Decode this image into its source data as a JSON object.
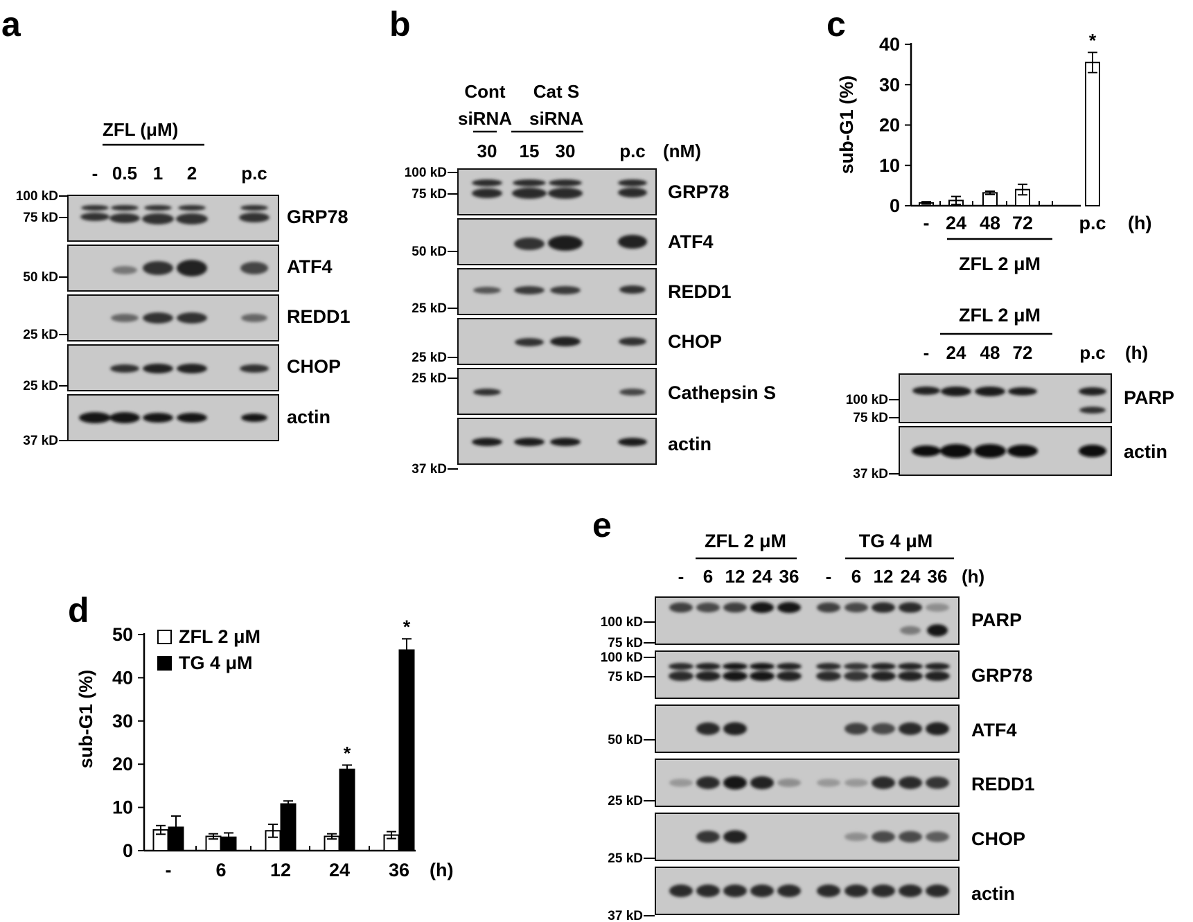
{
  "panel_a": {
    "letter": "a",
    "treatment": "ZFL (μM)",
    "lanes": [
      "-",
      "0.5",
      "1",
      "2",
      "p.c"
    ],
    "proteins": [
      "GRP78",
      "ATF4",
      "REDD1",
      "CHOP",
      "actin"
    ],
    "markers": [
      "100 kD",
      "75 kD",
      "50 kD",
      "25 kD",
      "25 kD",
      "37 kD"
    ]
  },
  "panel_b": {
    "letter": "b",
    "group1_line1": "Cont",
    "group1_line2": "siRNA",
    "group2_line1": "Cat S",
    "group2_line2": "siRNA",
    "lanes": [
      "30",
      "15",
      "30",
      "p.c"
    ],
    "unit": "(nM)",
    "proteins": [
      "GRP78",
      "ATF4",
      "REDD1",
      "CHOP",
      "Cathepsin S",
      "actin"
    ],
    "markers": [
      "100 kD",
      "75 kD",
      "50 kD",
      "25 kD",
      "25 kD",
      "25 kD",
      "37 kD"
    ]
  },
  "panel_c": {
    "letter": "c",
    "blot": {
      "treatment": "ZFL 2 μM",
      "lanes": [
        "-",
        "24",
        "48",
        "72",
        "p.c"
      ],
      "unit": "(h)",
      "proteins": [
        "PARP",
        "actin"
      ],
      "markers": [
        "100 kD",
        "75 kD",
        "37 kD"
      ]
    }
  },
  "panel_d": {
    "letter": "d"
  },
  "panel_e": {
    "letter": "e",
    "group1": "ZFL 2 μM",
    "group2": "TG 4 μM",
    "lanes": [
      "-",
      "6",
      "12",
      "24",
      "36",
      "-",
      "6",
      "12",
      "24",
      "36"
    ],
    "unit": "(h)",
    "proteins": [
      "PARP",
      "GRP78",
      "ATF4",
      "REDD1",
      "CHOP",
      "actin"
    ],
    "markers": [
      "100 kD",
      "75 kD",
      "100 kD",
      "75 kD",
      "50 kD",
      "25 kD",
      "25 kD",
      "37 kD"
    ]
  },
  "chart_data": [
    {
      "type": "bar",
      "panel": "c",
      "ylabel": "sub-G1 (%)",
      "xlabel": "",
      "categories": [
        "-",
        "24",
        "48",
        "72",
        "p.c"
      ],
      "x_unit": "(h)",
      "group_label": "ZFL 2 μM",
      "values": [
        0.7,
        1.3,
        3.2,
        4.0,
        35.5
      ],
      "errors": [
        0.3,
        1.0,
        0.4,
        1.3,
        2.5
      ],
      "significant": [
        false,
        false,
        false,
        false,
        true
      ],
      "ylim": [
        0,
        40
      ],
      "yticks": [
        0,
        10,
        20,
        30,
        40
      ],
      "bar_color": "#ffffff",
      "grid": false
    },
    {
      "type": "bar",
      "panel": "d",
      "ylabel": "sub-G1 (%)",
      "xlabel": "",
      "categories": [
        "-",
        "6",
        "12",
        "24",
        "36"
      ],
      "x_unit": "(h)",
      "series": [
        {
          "name": "ZFL 2 μM",
          "color": "#ffffff",
          "values": [
            4.8,
            3.3,
            4.6,
            3.3,
            3.6
          ],
          "errors": [
            1.0,
            0.6,
            1.5,
            0.6,
            0.8
          ],
          "significant": [
            false,
            false,
            false,
            false,
            false
          ]
        },
        {
          "name": "TG 4 μM",
          "color": "#000000",
          "values": [
            5.4,
            3.1,
            10.8,
            18.8,
            46.4
          ],
          "errors": [
            2.6,
            1.0,
            0.7,
            1.0,
            2.6
          ],
          "significant": [
            false,
            false,
            false,
            true,
            true
          ]
        }
      ],
      "ylim": [
        0,
        50
      ],
      "yticks": [
        0,
        10,
        20,
        30,
        40,
        50
      ],
      "legend": "top-left",
      "grid": false
    }
  ],
  "panel_e_bands": {
    "PARP_full": [
      0.75,
      0.7,
      0.75,
      0.95,
      0.95,
      0.75,
      0.7,
      0.85,
      0.85,
      0.35
    ],
    "PARP_cleaved": [
      0,
      0,
      0,
      0,
      0,
      0,
      0,
      0,
      0.45,
      0.95
    ],
    "GRP78": [
      0.85,
      0.9,
      0.95,
      0.95,
      0.9,
      0.85,
      0.8,
      0.9,
      0.9,
      0.9
    ],
    "ATF4": [
      0,
      0.85,
      0.9,
      0,
      0,
      0,
      0.75,
      0.7,
      0.85,
      0.9
    ],
    "REDD1": [
      0.3,
      0.85,
      0.95,
      0.9,
      0.35,
      0.3,
      0.3,
      0.85,
      0.85,
      0.8
    ],
    "CHOP": [
      0,
      0.8,
      0.9,
      0,
      0,
      0,
      0.35,
      0.7,
      0.7,
      0.6
    ],
    "actin": [
      0.85,
      0.85,
      0.85,
      0.85,
      0.85,
      0.85,
      0.85,
      0.85,
      0.85,
      0.85
    ]
  }
}
